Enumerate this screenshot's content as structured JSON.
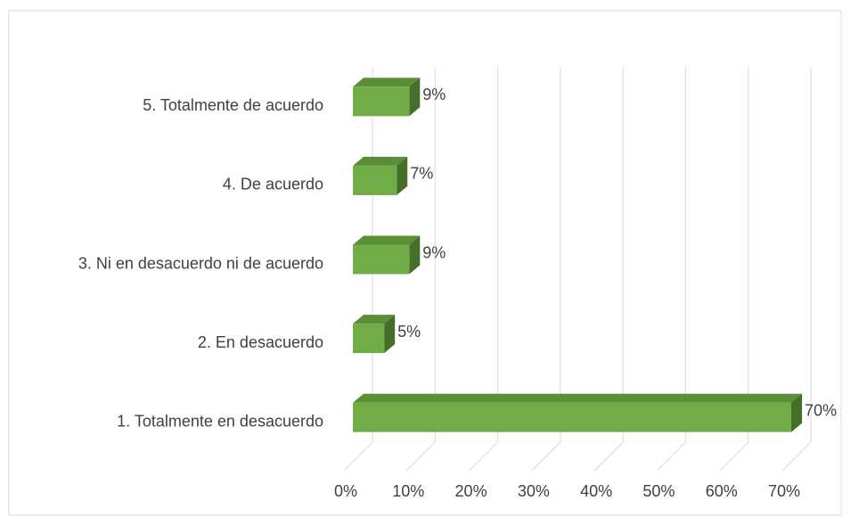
{
  "chart_data": {
    "type": "bar",
    "orientation": "horizontal",
    "three_d": true,
    "categories": [
      "5. Totalmente de acuerdo",
      "4. De acuerdo",
      "3. Ni en desacuerdo ni de acuerdo",
      "2. En desacuerdo",
      "1. Totalmente en desacuerdo"
    ],
    "values": [
      9,
      7,
      9,
      5,
      70
    ],
    "value_labels": [
      "9%",
      "7%",
      "9%",
      "5%",
      "70%"
    ],
    "color": "#70ad47",
    "xlim": [
      0,
      70
    ],
    "xticks": [
      {
        "value": 0,
        "label": "0%"
      },
      {
        "value": 10,
        "label": "10%"
      },
      {
        "value": 20,
        "label": "20%"
      },
      {
        "value": 30,
        "label": "30%"
      },
      {
        "value": 40,
        "label": "40%"
      },
      {
        "value": 50,
        "label": "50%"
      },
      {
        "value": 60,
        "label": "60%"
      },
      {
        "value": 70,
        "label": "70%"
      }
    ],
    "grid": true
  }
}
